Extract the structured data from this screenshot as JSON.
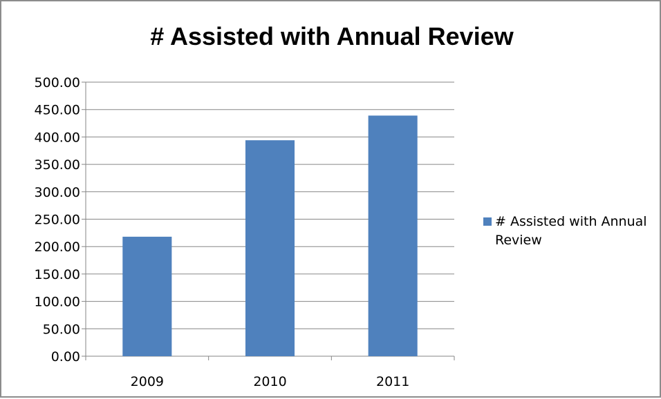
{
  "chart_data": {
    "type": "bar",
    "title": "# Assisted with Annual Review",
    "categories": [
      "2009",
      "2010",
      "2011"
    ],
    "series": [
      {
        "name": "# Assisted with Annual Review",
        "values": [
          218,
          394,
          439
        ],
        "color": "#4f81bd"
      }
    ],
    "ylim": [
      0,
      500
    ],
    "yticks": [
      "0.00",
      "50.00",
      "100.00",
      "150.00",
      "200.00",
      "250.00",
      "300.00",
      "350.00",
      "400.00",
      "450.00",
      "500.00"
    ],
    "grid": true,
    "legend_position": "right"
  }
}
